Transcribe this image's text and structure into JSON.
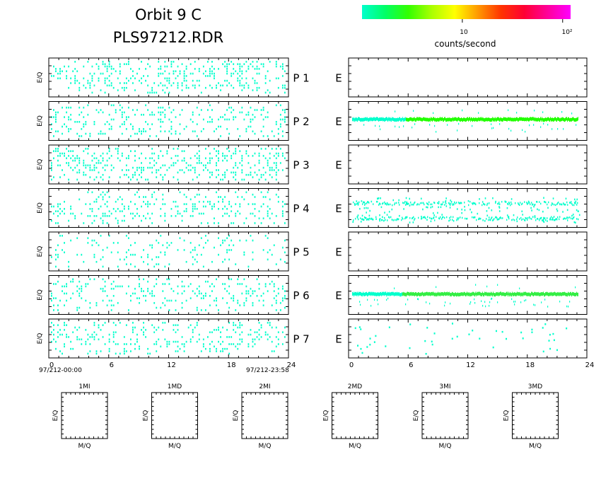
{
  "title": {
    "line1": "Orbit 9 C",
    "line2": "PLS97212.RDR"
  },
  "colorbar": {
    "label": "counts/second",
    "tick_labels": [
      "10",
      "10²"
    ],
    "tick_values": [
      10,
      100
    ],
    "range": [
      1,
      120
    ],
    "scale": "log",
    "colors": [
      "#00ffcc",
      "#00ff66",
      "#33ff00",
      "#aaff00",
      "#ffff00",
      "#ff9900",
      "#ff3300",
      "#ff0033",
      "#ff0099",
      "#ff00ff"
    ]
  },
  "chart_data": {
    "type": "heatmap",
    "rows": [
      {
        "id": "P 1",
        "left_density": 0.42,
        "right": {
          "type": "empty"
        }
      },
      {
        "id": "P 2",
        "left_density": 0.3,
        "right": {
          "type": "band",
          "level": 0.55,
          "intensity": 1.0
        }
      },
      {
        "id": "P 3",
        "left_density": 0.42,
        "right": {
          "type": "empty"
        }
      },
      {
        "id": "P 4",
        "left_density": 0.3,
        "right": {
          "type": "double-band",
          "levels": [
            0.62,
            0.23
          ],
          "intensity": 0.2
        }
      },
      {
        "id": "P 5",
        "left_density": 0.18,
        "right": {
          "type": "empty"
        }
      },
      {
        "id": "P 6",
        "left_density": 0.3,
        "right": {
          "type": "band",
          "level": 0.53,
          "intensity": 0.6
        }
      },
      {
        "id": "P 7",
        "left_density": 0.3,
        "right": {
          "type": "sparse",
          "density": 0.04
        }
      }
    ],
    "row_label_suffix": "E",
    "ylabel": "E/Q",
    "x_ticks": [
      0,
      6,
      12,
      18,
      24
    ],
    "xlim": [
      0,
      24
    ],
    "time_start": "97/212-00:00",
    "time_end": "97/212-23:58",
    "mass_panels": {
      "labels": [
        "1MI",
        "1MD",
        "2MI",
        "2MD",
        "3MI",
        "3MD"
      ],
      "xlabel": "M/Q",
      "ylabel": "E/Q"
    }
  }
}
